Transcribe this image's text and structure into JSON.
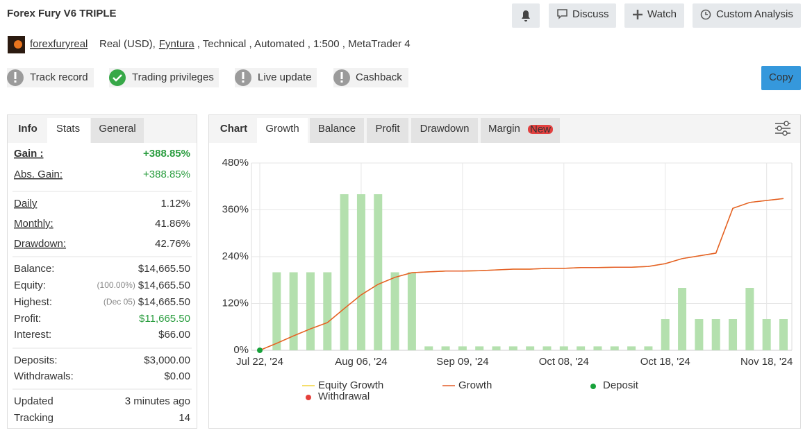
{
  "header": {
    "title": "Forex Fury V6 TRIPLE",
    "buttons": [
      "Discuss",
      "Watch",
      "Custom Analysis"
    ],
    "user": "forexfuryreal",
    "account": [
      "Real (USD),",
      "Fyntura",
      ", Technical , Automated , 1:500 , MetaTrader 4"
    ],
    "badges": [
      "Track record",
      "Trading privileges",
      "Live update",
      "Cashback"
    ],
    "copy": "Copy"
  },
  "stats": {
    "tabs": [
      "Info",
      "Stats",
      "General"
    ],
    "rows": [
      {
        "label": "Gain :",
        "value": "+388.85%"
      },
      {
        "label": "Abs. Gain:",
        "value": "+388.85%"
      },
      {
        "label": "Daily",
        "value": "1.12%"
      },
      {
        "label": "Monthly:",
        "value": "41.86%"
      },
      {
        "label": "Drawdown:",
        "value": "42.76%"
      },
      {
        "label": "Balance:",
        "value": "$14,665.50"
      },
      {
        "label": "Equity:",
        "note": "(100.00%)",
        "value": "$14,665.50"
      },
      {
        "label": "Highest:",
        "note": "(Dec 05)",
        "value": "$14,665.50"
      },
      {
        "label": "Profit:",
        "value": "$11,665.50"
      },
      {
        "label": "Interest:",
        "value": "$66.00"
      },
      {
        "label": "Deposits:",
        "value": "$3,000.00"
      },
      {
        "label": "Withdrawals:",
        "value": "$0.00"
      },
      {
        "label": "Updated",
        "value": "3 minutes ago"
      },
      {
        "label": "Tracking",
        "value": "14"
      }
    ]
  },
  "chart_tabs": {
    "tabs": [
      "Chart",
      "Growth",
      "Balance",
      "Profit",
      "Drawdown",
      "Margin"
    ],
    "badge": "New"
  },
  "chart_data": {
    "type": "bar",
    "categories": [
      "Jul 22, '24",
      null,
      null,
      null,
      null,
      null,
      "Aug 06, '24",
      null,
      null,
      null,
      null,
      null,
      "Sep 09, '24",
      null,
      null,
      null,
      null,
      null,
      "Oct 08, '24",
      null,
      null,
      null,
      null,
      null,
      "Oct 18, '24",
      null,
      null,
      null,
      null,
      null,
      "Nov 18, '24",
      null
    ],
    "ylim": [
      0,
      480
    ],
    "yticks": [
      {
        "value": 0,
        "label": "0%"
      },
      {
        "value": 120,
        "label": "120%"
      },
      {
        "value": 240,
        "label": "240%"
      },
      {
        "value": 360,
        "label": "360%"
      },
      {
        "value": 480,
        "label": "480%"
      }
    ],
    "grid": true,
    "series": [
      {
        "type": "bar",
        "color": "#b4e0ae",
        "values": [
          null,
          200,
          200,
          200,
          200,
          400,
          400,
          400,
          200,
          200,
          10,
          10,
          10,
          10,
          10,
          10,
          10,
          10,
          10,
          10,
          10,
          10,
          10,
          10,
          80,
          160,
          80,
          80,
          80,
          160,
          80,
          80
        ]
      },
      {
        "name": "Equity Growth",
        "type": "line",
        "color": "#f2d43c",
        "values": [
          0,
          18,
          37,
          55,
          71,
          107,
          142,
          169,
          187,
          199,
          201,
          203,
          203,
          204,
          206,
          208,
          208,
          210,
          210,
          212,
          212,
          213,
          213,
          215,
          222,
          235,
          242,
          249,
          364,
          379,
          384,
          388.85
        ]
      },
      {
        "name": "Growth",
        "type": "line",
        "color": "#e45d28",
        "values": [
          0,
          18,
          37,
          55,
          71,
          107,
          142,
          169,
          187,
          199,
          201,
          203,
          203,
          204,
          206,
          208,
          208,
          210,
          210,
          212,
          212,
          213,
          213,
          215,
          222,
          235,
          242,
          249,
          364,
          379,
          384,
          388.85
        ]
      },
      {
        "name": "Deposit",
        "type": "scatter",
        "color": "#17a23a",
        "values": [
          0,
          null,
          null,
          null,
          null,
          null,
          null,
          null,
          null,
          null,
          null,
          null,
          null,
          null,
          null,
          null,
          null,
          null,
          null,
          null,
          null,
          null,
          null,
          null,
          null,
          null,
          null,
          null,
          null,
          null,
          null,
          null
        ]
      },
      {
        "name": "Withdrawal",
        "type": "scatter",
        "color": "#e5403a",
        "values": [
          null,
          null,
          null,
          null,
          null,
          null,
          null,
          null,
          null,
          null,
          null,
          null,
          null,
          null,
          null,
          null,
          null,
          null,
          null,
          null,
          null,
          null,
          null,
          null,
          null,
          null,
          null,
          null,
          null,
          null,
          null,
          null
        ]
      }
    ]
  }
}
